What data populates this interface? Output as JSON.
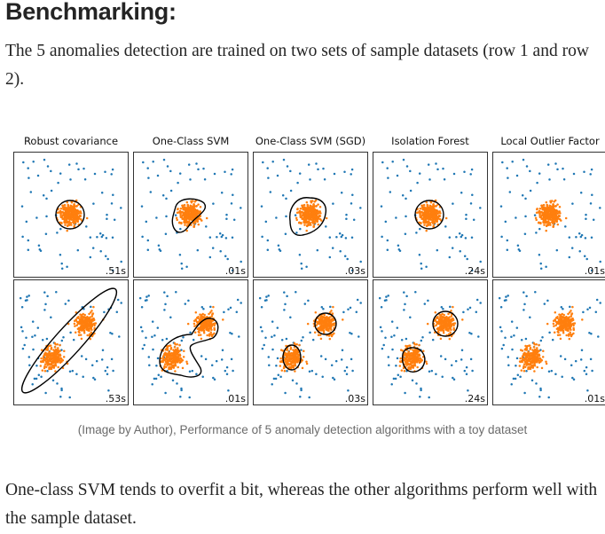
{
  "article": {
    "heading": "Benchmarking:",
    "intro": "The 5 anomalies detection are trained on two sets of sample datasets (row 1 and row 2).",
    "conclusion": "One-class SVM tends to overfit a bit, whereas the other algorithms perform well with the sample dataset."
  },
  "figure": {
    "caption": "(Image by Author), Performance of 5 anomaly detection algorithms with a toy dataset",
    "algorithms": [
      "Robust covariance",
      "One-Class SVM",
      "One-Class SVM (SGD)",
      "Isolation Forest",
      "Local Outlier Factor"
    ],
    "timings": [
      [
        ".51s",
        ".01s",
        ".03s",
        ".24s",
        ".01s"
      ],
      [
        ".53s",
        ".01s",
        ".03s",
        ".24s",
        ".01s"
      ]
    ],
    "colors": {
      "inlier": "#ff7f0e",
      "outlier": "#1f77b4",
      "boundary": "#000000",
      "panel_border": "#333333"
    }
  }
}
